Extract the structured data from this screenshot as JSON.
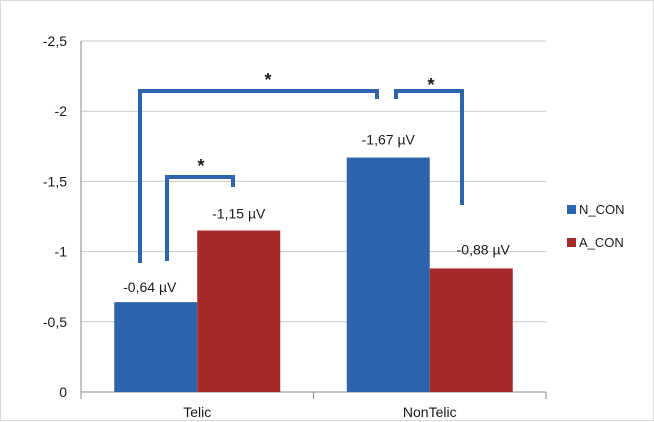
{
  "chart_data": {
    "type": "bar",
    "categories": [
      "Telic",
      "NonTelic"
    ],
    "series": [
      {
        "name": "N_CON",
        "values": [
          -0.64,
          -1.67
        ],
        "labels": [
          "-0,64 µV",
          "-1,67 µV"
        ],
        "color": "#2e64ad"
      },
      {
        "name": "A_CON",
        "values": [
          -1.15,
          -0.88
        ],
        "labels": [
          "-1,15 µV",
          "-0,88 µV"
        ],
        "color": "#a52a2a"
      }
    ],
    "y_ticks": [
      "0",
      "-0,5",
      "-1",
      "-1,5",
      "-2",
      "-2,5"
    ],
    "y_tick_values": [
      0,
      -0.5,
      -1,
      -1.5,
      -2,
      -2.5
    ],
    "ylim": [
      0,
      -2.5
    ],
    "y_axis_inverted": true,
    "grid": true,
    "legend_position": "right",
    "significance_marks": [
      "*",
      "*",
      "*"
    ],
    "bracket_color": "#2e64ad"
  }
}
